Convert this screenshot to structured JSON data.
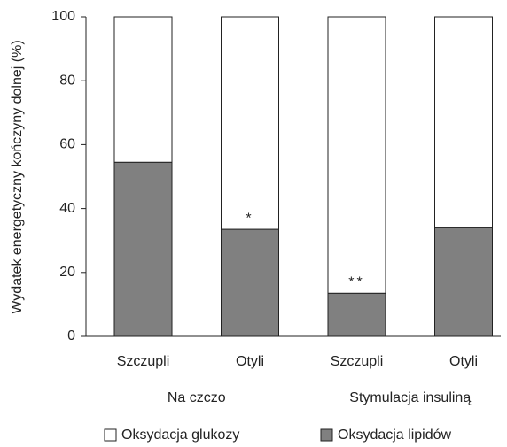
{
  "chart_data": {
    "type": "stacked_bar",
    "y_label": "Wydatek energetyczny kończyny dolnej (%)",
    "categories": [
      "Szczupli",
      "Otyli",
      "Szczupli",
      "Otyli"
    ],
    "groups": [
      "Na czczo",
      "Stymulacja insuliną"
    ],
    "series": [
      {
        "name": "Oksydacja glukozy",
        "color": "#ffffff",
        "values": [
          45.5,
          66.5,
          86.5,
          66
        ]
      },
      {
        "name": "Oksydacja lipidów",
        "color": "#808080",
        "values": [
          54.5,
          33.5,
          13.5,
          34
        ]
      }
    ],
    "annotations": [
      {
        "text": "*",
        "category": 1
      },
      {
        "text": "**",
        "category": 2
      }
    ],
    "ylim": [
      0,
      100
    ],
    "yticks": [
      0,
      20,
      40,
      60,
      80,
      100
    ]
  }
}
